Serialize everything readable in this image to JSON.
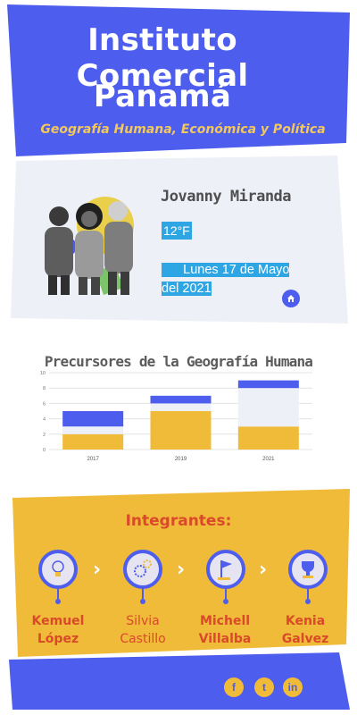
{
  "header": {
    "title_line1": "Instituto Comercial",
    "title_line2": "Panamá",
    "subtitle": "Geografía Humana, Económica y Política"
  },
  "profile": {
    "name": "Jovanny Miranda",
    "temperature": "12°F",
    "date_line1": "Lunes 17 de Mayo",
    "date_line2": "del 2021",
    "home_icon": "home-icon"
  },
  "chart": {
    "title": "Precursores de la Geografía Humana"
  },
  "chart_data": {
    "type": "bar",
    "stacked": true,
    "categories": [
      "2017",
      "2019",
      "2021"
    ],
    "series": [
      {
        "color": "#f0bb38",
        "values": [
          2,
          5,
          3
        ]
      },
      {
        "color": "#eef0f8",
        "values": [
          1,
          1,
          5
        ]
      },
      {
        "color": "#4d5ded",
        "values": [
          2,
          1,
          1
        ]
      }
    ],
    "ylim": [
      0,
      10
    ],
    "yticks": [
      "0",
      "2",
      "4",
      "6",
      "8",
      "10"
    ],
    "grid": true
  },
  "team": {
    "title": "Integrantes:",
    "members": [
      {
        "first": "Kemuel",
        "last": "López",
        "icon": "lightbulb-icon"
      },
      {
        "first": "Silvia",
        "last": "Castillo",
        "icon": "gears-icon"
      },
      {
        "first": "Michell",
        "last": "Villalba",
        "icon": "flag-icon"
      },
      {
        "first": "Kenia",
        "last": "Galvez",
        "icon": "trophy-icon"
      }
    ]
  },
  "footer": {
    "social": [
      {
        "icon": "facebook-icon",
        "glyph": "f"
      },
      {
        "icon": "twitter-icon",
        "glyph": "t"
      },
      {
        "icon": "linkedin-icon",
        "glyph": "in"
      }
    ]
  },
  "colors": {
    "blue": "#4d5ded",
    "yellow": "#f0bb38",
    "sky": "#2fa6e4",
    "red": "#d94a2a",
    "card": "#eef0f8"
  }
}
